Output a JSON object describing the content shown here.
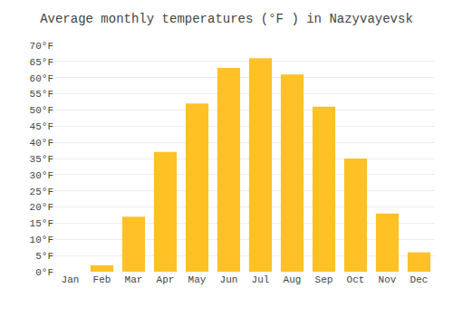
{
  "chart_data": {
    "type": "bar",
    "title": "Average monthly temperatures (°F ) in Nazyvayevsk",
    "categories": [
      "Jan",
      "Feb",
      "Mar",
      "Apr",
      "May",
      "Jun",
      "Jul",
      "Aug",
      "Sep",
      "Oct",
      "Nov",
      "Dec"
    ],
    "values": [
      0,
      2,
      17,
      37,
      52,
      63,
      66,
      61,
      51,
      35,
      18,
      6
    ],
    "color": "#FFC125",
    "ylim": [
      0,
      70
    ],
    "yticks": [
      {
        "value": 0,
        "label": "0°F"
      },
      {
        "value": 5,
        "label": "5°F"
      },
      {
        "value": 10,
        "label": "10°F"
      },
      {
        "value": 15,
        "label": "15°F"
      },
      {
        "value": 20,
        "label": "20°F"
      },
      {
        "value": 25,
        "label": "25°F"
      },
      {
        "value": 30,
        "label": "30°F"
      },
      {
        "value": 35,
        "label": "35°F"
      },
      {
        "value": 40,
        "label": "40°F"
      },
      {
        "value": 45,
        "label": "45°F"
      },
      {
        "value": 50,
        "label": "50°F"
      },
      {
        "value": 55,
        "label": "55°F"
      },
      {
        "value": 60,
        "label": "60°F"
      },
      {
        "value": 65,
        "label": "65°F"
      },
      {
        "value": 70,
        "label": "70°F"
      }
    ],
    "grid": true
  }
}
